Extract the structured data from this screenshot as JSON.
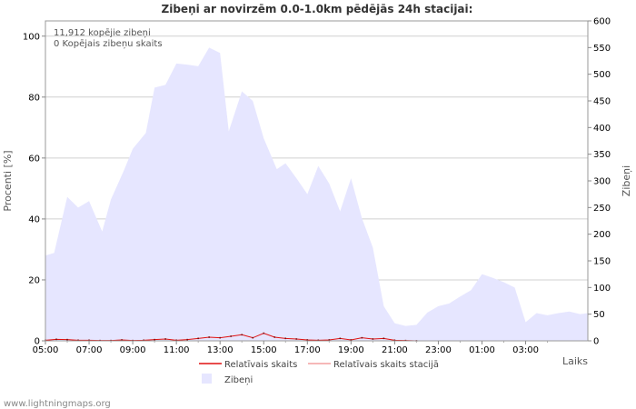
{
  "chart_data": {
    "type": "area",
    "title": "Zibeņi ar novirzēm 0.0-1.0km pēdējās 24h stacijai:",
    "xlabel": "Laiks",
    "ylabel_left": "Procenti   [%]",
    "ylabel_right": "Zibeņi",
    "ylim_left": [
      0,
      105
    ],
    "ylim_right": [
      0,
      600
    ],
    "x_range_hours": [
      5,
      29.85
    ],
    "left_ticks": [
      "0",
      "20",
      "40",
      "60",
      "80",
      "100"
    ],
    "right_ticks": [
      "0",
      "50",
      "100",
      "150",
      "200",
      "250",
      "300",
      "350",
      "400",
      "450",
      "500",
      "550",
      "600"
    ],
    "x_tick_labels": [
      "05:00",
      "07:00",
      "09:00",
      "11:00",
      "13:00",
      "15:00",
      "17:00",
      "19:00",
      "21:00",
      "23:00",
      "01:00",
      "03:00"
    ],
    "annotations": [
      "11,912 kopējie zibeņi",
      "0 Kopējais zibeņu skaits"
    ],
    "grid": true,
    "series": [
      {
        "name": "Zibeņi",
        "axis": "right",
        "color": "#e6e6ff",
        "x": [
          5.0,
          5.4,
          6.0,
          6.5,
          7.0,
          7.6,
          8.0,
          8.6,
          9.0,
          9.6,
          10.0,
          10.5,
          11.0,
          11.5,
          12.0,
          12.5,
          13.0,
          13.4,
          14.0,
          14.5,
          15.0,
          15.6,
          16.0,
          16.5,
          17.0,
          17.5,
          18.0,
          18.5,
          19.0,
          19.5,
          20.0,
          20.5,
          21.0,
          21.5,
          22.0,
          22.5,
          23.0,
          23.5,
          24.0,
          24.5,
          25.0,
          25.5,
          26.0,
          26.5,
          27.0,
          27.5,
          28.0,
          28.5,
          29.0,
          29.5,
          29.85
        ],
        "values": [
          160,
          165,
          270,
          250,
          262,
          205,
          265,
          320,
          360,
          390,
          475,
          480,
          520,
          518,
          515,
          550,
          540,
          393,
          468,
          450,
          380,
          322,
          333,
          305,
          275,
          328,
          295,
          243,
          305,
          230,
          175,
          65,
          33,
          28,
          30,
          53,
          65,
          70,
          83,
          95,
          125,
          118,
          110,
          100,
          35,
          52,
          48,
          52,
          55,
          50,
          52
        ]
      },
      {
        "name": "Relatīvais skaits",
        "axis": "left",
        "color": "#e01010",
        "x": [
          5.0,
          5.5,
          6.0,
          6.5,
          7.0,
          7.5,
          8.0,
          8.5,
          9.0,
          9.5,
          10.0,
          10.5,
          11.0,
          11.5,
          12.0,
          12.5,
          13.0,
          13.5,
          14.0,
          14.5,
          15.0,
          15.5,
          16.0,
          16.5,
          17.0,
          17.5,
          18.0,
          18.5,
          19.0,
          19.5,
          20.0,
          20.5,
          21.0,
          21.5,
          22.0
        ],
        "values": [
          0.2,
          0.5,
          0.4,
          0.2,
          0.2,
          0.1,
          0.1,
          0.3,
          0.1,
          0.2,
          0.4,
          0.6,
          0.2,
          0.4,
          0.8,
          1.2,
          1.0,
          1.5,
          2.0,
          1.0,
          2.5,
          1.2,
          0.8,
          0.6,
          0.3,
          0.2,
          0.3,
          0.8,
          0.3,
          1.0,
          0.6,
          0.8,
          0.2,
          0.1,
          0.0
        ]
      },
      {
        "name": "Relatīvais skaits stacijā",
        "axis": "left",
        "color": "#f4a0a0",
        "x": [
          5.0,
          22.0
        ],
        "values": [
          0,
          0
        ]
      }
    ]
  },
  "watermark": "www.lightningmaps.org"
}
